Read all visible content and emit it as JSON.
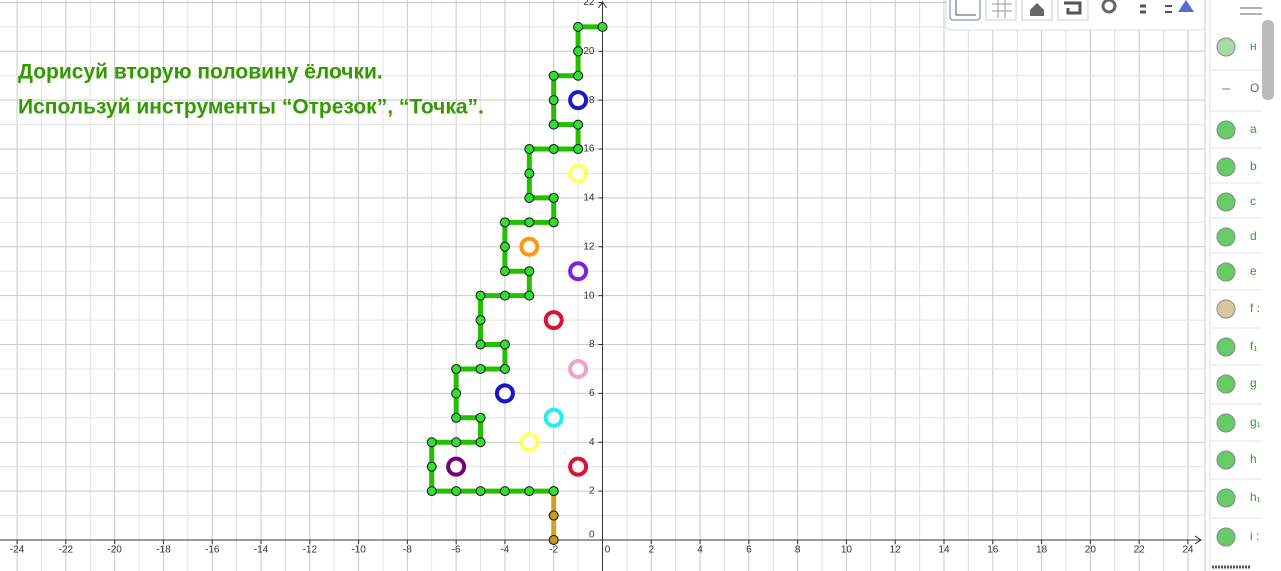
{
  "instruction": [
    "Дорисуй вторую половину ёлочки.",
    "Используй инструменты “Отрезок”, “Точка”."
  ],
  "graphics": {
    "xlim": [
      -24.7,
      24.7
    ],
    "ylim": [
      -1.27,
      22.1
    ],
    "xticks": [
      -24,
      -22,
      -20,
      -18,
      -16,
      -14,
      -12,
      -10,
      -8,
      -6,
      -4,
      -2,
      0,
      2,
      4,
      6,
      8,
      10,
      12,
      14,
      16,
      18,
      20,
      22,
      24
    ],
    "yticks": [
      0,
      2,
      4,
      6,
      8,
      10,
      12,
      14,
      16,
      18,
      20,
      22
    ],
    "grid": true,
    "tree": {
      "color": "#22c000",
      "x": [
        -2,
        -3,
        -4,
        -5,
        -6,
        -7,
        -7,
        -7,
        -6,
        -5,
        -5,
        -6,
        -6,
        -6,
        -5,
        -4,
        -4,
        -5,
        -5,
        -5,
        -4,
        -3,
        -3,
        -4,
        -4,
        -4,
        -3,
        -2,
        -2,
        -3,
        -3,
        -3,
        -2,
        -1,
        -1,
        -2,
        -2,
        -2,
        -1,
        -1,
        -1,
        0
      ],
      "y": [
        2,
        2,
        2,
        2,
        2,
        2,
        3,
        4,
        4,
        4,
        5,
        5,
        6,
        7,
        7,
        7,
        8,
        8,
        9,
        10,
        10,
        10,
        11,
        11,
        12,
        13,
        13,
        13,
        14,
        14,
        15,
        16,
        16,
        16,
        17,
        17,
        18,
        19,
        19,
        20,
        21,
        21
      ]
    },
    "trunk": {
      "color": "#d4a21a",
      "x": [
        -2,
        -2,
        -2
      ],
      "y": [
        2,
        1,
        0
      ]
    },
    "ornaments": [
      {
        "x": -1,
        "y": 18,
        "color": "#1a1acc"
      },
      {
        "x": -1,
        "y": 15,
        "color": "#ffff66"
      },
      {
        "x": -3,
        "y": 12,
        "color": "#ff9a10"
      },
      {
        "x": -1,
        "y": 11,
        "color": "#7a22dd"
      },
      {
        "x": -2,
        "y": 9,
        "color": "#dd1133"
      },
      {
        "x": -1,
        "y": 7,
        "color": "#f4a0c8"
      },
      {
        "x": -4,
        "y": 6,
        "color": "#1515cc"
      },
      {
        "x": -2,
        "y": 5,
        "color": "#22eeee"
      },
      {
        "x": -3,
        "y": 4,
        "color": "#ffff66"
      },
      {
        "x": -6,
        "y": 3,
        "color": "#770077"
      },
      {
        "x": -1,
        "y": 3,
        "color": "#dd1133"
      }
    ]
  },
  "algebra": {
    "items": [
      {
        "label": "н",
        "color": "#a9d9a9"
      },
      {
        "label": "O",
        "color": null
      },
      {
        "label": "a",
        "color": "#66cc66"
      },
      {
        "label": "b",
        "color": "#66cc66"
      },
      {
        "label": "c",
        "color": "#66cc66"
      },
      {
        "label": "d",
        "color": "#66cc66"
      },
      {
        "label": "e",
        "color": "#66cc66"
      },
      {
        "label": "f :",
        "color": "#d8c8a0"
      },
      {
        "label": "f₁",
        "color": "#66cc66"
      },
      {
        "label": "g",
        "color": "#66cc66"
      },
      {
        "label": "g₁",
        "color": "#66cc66"
      },
      {
        "label": "h",
        "color": "#66cc66"
      },
      {
        "label": "h₁",
        "color": "#66cc66"
      },
      {
        "label": "i :",
        "color": "#66cc66"
      }
    ]
  }
}
